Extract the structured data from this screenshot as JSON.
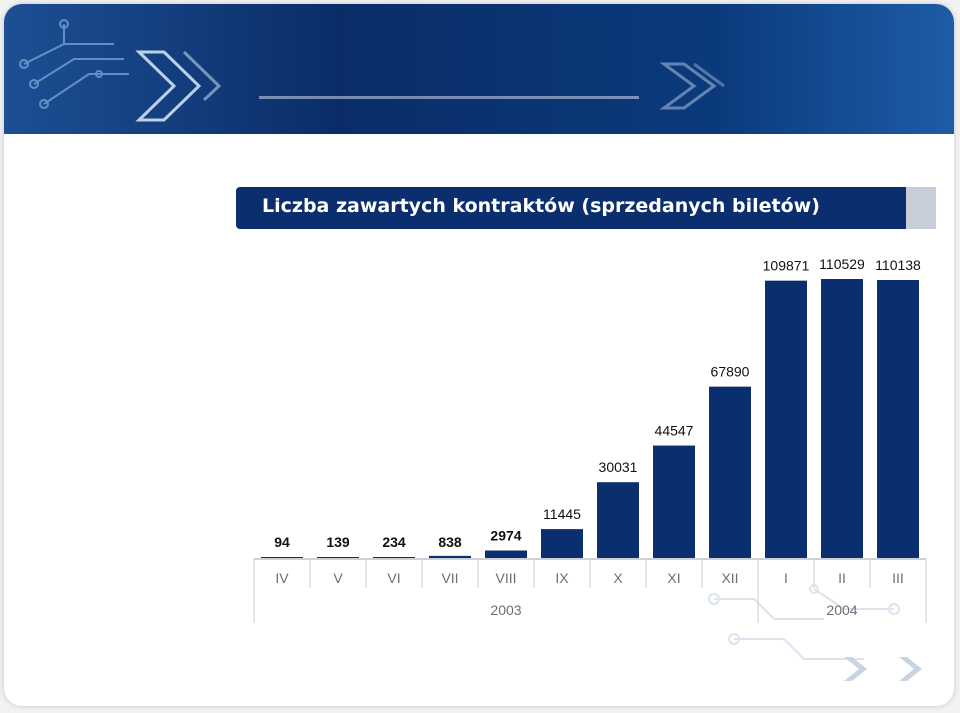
{
  "slide": {
    "title": "Liczba zawartych kontraktów (sprzedanych biletów)",
    "colors": {
      "header": "#0b2f6e",
      "bar": "#0b2f6e",
      "accent": "#c7ced9"
    }
  },
  "chart_data": {
    "type": "bar",
    "title": "",
    "categories": [
      "IV",
      "V",
      "VI",
      "VII",
      "VIII",
      "IX",
      "X",
      "XI",
      "XII",
      "I",
      "II",
      "III"
    ],
    "values": [
      94,
      139,
      234,
      838,
      2974,
      11445,
      30031,
      44547,
      67890,
      109871,
      110529,
      110138
    ],
    "year_groups": [
      {
        "label": "2003",
        "categories": [
          "IV",
          "V",
          "VI",
          "VII",
          "VIII",
          "IX",
          "X",
          "XI",
          "XII"
        ]
      },
      {
        "label": "2004",
        "categories": [
          "I",
          "II",
          "III"
        ]
      }
    ],
    "ylim": [
      0,
      110529
    ],
    "data_labels": true,
    "grid": false,
    "legend": "none"
  }
}
